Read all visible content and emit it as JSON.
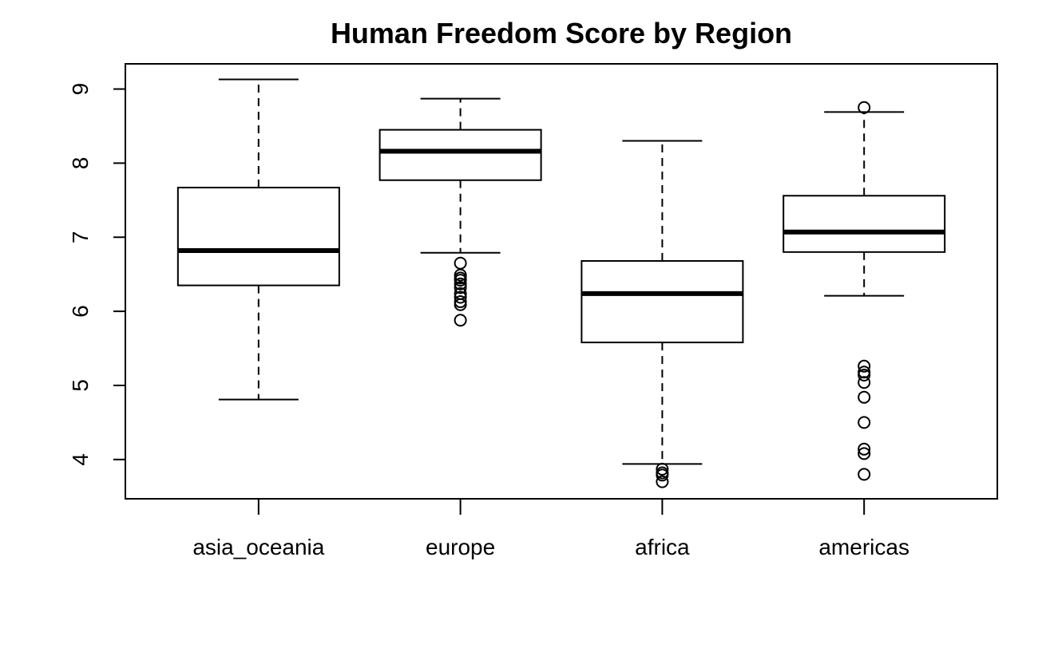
{
  "chart_data": {
    "type": "box",
    "title": "Human Freedom Score by Region",
    "xlabel": "",
    "ylabel": "",
    "categories": [
      "asia_oceania",
      "europe",
      "africa",
      "americas"
    ],
    "y_ticks": [
      4,
      5,
      6,
      7,
      8,
      9
    ],
    "ylim": [
      3.47,
      9.34
    ],
    "grid": false,
    "legend": "none",
    "series": [
      {
        "category": "asia_oceania",
        "whisker_low": 4.81,
        "q1": 6.35,
        "median": 6.82,
        "q3": 7.67,
        "whisker_high": 9.13,
        "outliers": []
      },
      {
        "category": "europe",
        "whisker_low": 6.79,
        "q1": 7.77,
        "median": 8.16,
        "q3": 8.45,
        "whisker_high": 8.87,
        "outliers": [
          6.65,
          6.49,
          6.45,
          6.42,
          6.37,
          6.32,
          6.24,
          6.19,
          6.13,
          6.09,
          5.88
        ]
      },
      {
        "category": "africa",
        "whisker_low": 3.94,
        "q1": 5.58,
        "median": 6.24,
        "q3": 6.68,
        "whisker_high": 8.3,
        "outliers": [
          3.87,
          3.82,
          3.79,
          3.7
        ]
      },
      {
        "category": "americas",
        "whisker_low": 6.21,
        "q1": 6.8,
        "median": 7.07,
        "q3": 7.56,
        "whisker_high": 8.69,
        "outliers": [
          8.75,
          5.26,
          5.18,
          5.14,
          5.04,
          4.84,
          4.5,
          4.14,
          4.08,
          3.8
        ]
      }
    ],
    "colors": {
      "stroke": "#000000",
      "box_fill": "#ffffff",
      "background": "#ffffff"
    }
  }
}
